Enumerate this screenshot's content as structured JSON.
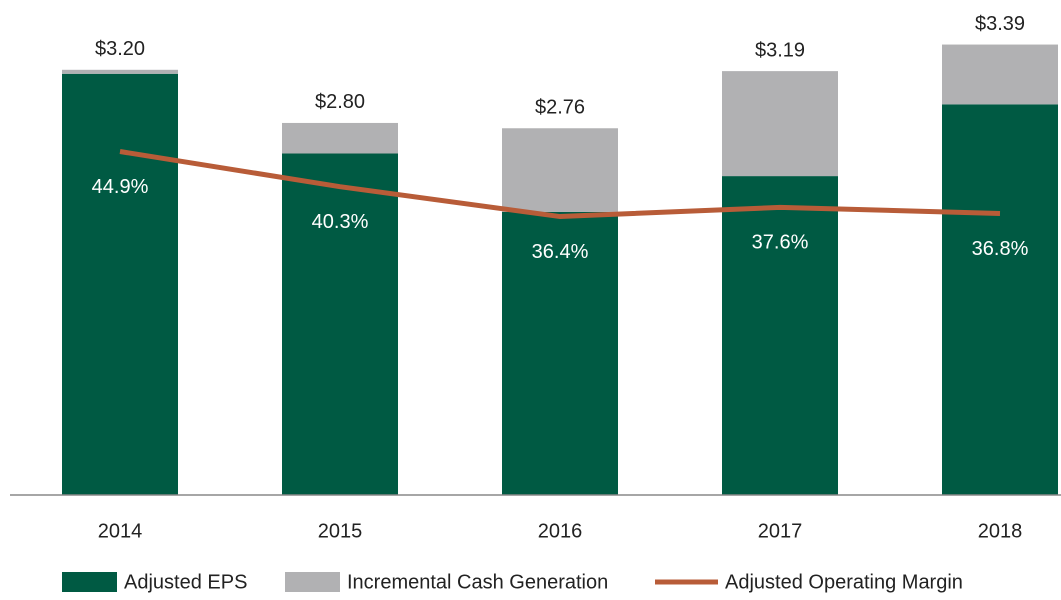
{
  "chart_data": {
    "type": "bar",
    "categories": [
      "2014",
      "2015",
      "2016",
      "2017",
      "2018"
    ],
    "stacked": true,
    "series": [
      {
        "name": "Adjusted EPS",
        "color": "#005a43",
        "values": [
          3.17,
          2.57,
          2.13,
          2.4,
          2.94
        ]
      },
      {
        "name": "Incremental Cash Generation",
        "color": "#b1b1b3",
        "values": [
          0.03,
          0.23,
          0.63,
          0.79,
          0.45
        ]
      },
      {
        "name": "Adjusted Operating Margin",
        "color": "#b85c38",
        "type": "line",
        "axis": "y2",
        "values": [
          44.9,
          40.3,
          36.4,
          37.6,
          36.8
        ],
        "value_labels": [
          "44.9%",
          "40.3%",
          "36.4%",
          "37.6%",
          "36.8%"
        ]
      }
    ],
    "totals": [
      3.2,
      2.8,
      2.76,
      3.19,
      3.39
    ],
    "total_labels": [
      "$3.20",
      "$2.80",
      "$2.76",
      "$3.19",
      "$3.39"
    ],
    "ylim": [
      0,
      3.65
    ],
    "y2lim": [
      0,
      63.4
    ],
    "legend": "bottom"
  }
}
